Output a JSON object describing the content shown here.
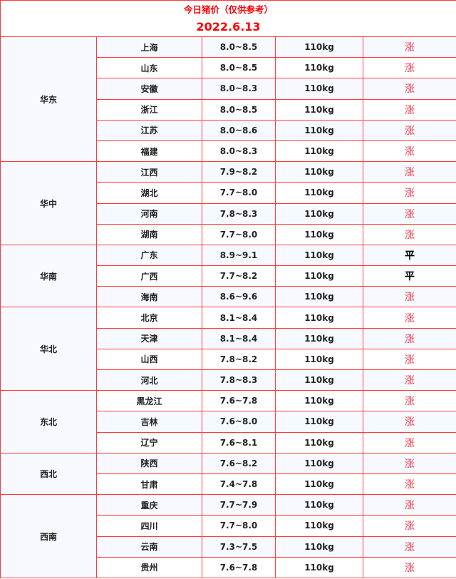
{
  "title": "今日猪价（仅供参考）",
  "date": "2022.6.13",
  "colors": {
    "border": "#ff3b3b",
    "up": "#f24052",
    "title": "#ff0000"
  },
  "regions": [
    {
      "name": "华东",
      "rows": [
        [
          "上海",
          "8.0~8.5",
          "110kg",
          "涨"
        ],
        [
          "山东",
          "8.0~8.5",
          "110kg",
          "涨"
        ],
        [
          "安徽",
          "8.0~8.3",
          "110kg",
          "涨"
        ],
        [
          "浙江",
          "8.0~8.5",
          "110kg",
          "涨"
        ],
        [
          "江苏",
          "8.0~8.6",
          "110kg",
          "涨"
        ],
        [
          "福建",
          "8.0~8.3",
          "110kg",
          "涨"
        ]
      ]
    },
    {
      "name": "华中",
      "rows": [
        [
          "江西",
          "7.9~8.2",
          "110kg",
          "涨"
        ],
        [
          "湖北",
          "7.7~8.0",
          "110kg",
          "涨"
        ],
        [
          "河南",
          "7.8~8.3",
          "110kg",
          "涨"
        ],
        [
          "湖南",
          "7.7~8.0",
          "110kg",
          "涨"
        ]
      ]
    },
    {
      "name": "华南",
      "rows": [
        [
          "广东",
          "8.9~9.1",
          "110kg",
          "平"
        ],
        [
          "广西",
          "7.7~8.2",
          "110kg",
          "平"
        ],
        [
          "海南",
          "8.6~9.6",
          "110kg",
          "涨"
        ]
      ]
    },
    {
      "name": "华北",
      "rows": [
        [
          "北京",
          "8.1~8.4",
          "110kg",
          "涨"
        ],
        [
          "天津",
          "8.1~8.4",
          "110kg",
          "涨"
        ],
        [
          "山西",
          "7.8~8.2",
          "110kg",
          "涨"
        ],
        [
          "河北",
          "7.8~8.3",
          "110kg",
          "涨"
        ]
      ]
    },
    {
      "name": "东北",
      "rows": [
        [
          "黑龙江",
          "7.6~7.8",
          "110kg",
          "涨"
        ],
        [
          "吉林",
          "7.6~8.0",
          "110kg",
          "涨"
        ],
        [
          "辽宁",
          "7.6~8.1",
          "110kg",
          "涨"
        ]
      ]
    },
    {
      "name": "西北",
      "rows": [
        [
          "陕西",
          "7.6~8.2",
          "110kg",
          "涨"
        ],
        [
          "甘肃",
          "7.4~7.8",
          "110kg",
          "涨"
        ]
      ]
    },
    {
      "name": "西南",
      "rows": [
        [
          "重庆",
          "7.7~7.9",
          "110kg",
          "涨"
        ],
        [
          "四川",
          "7.7~8.0",
          "110kg",
          "涨"
        ],
        [
          "云南",
          "7.3~7.5",
          "110kg",
          "涨"
        ],
        [
          "贵州",
          "7.6~7.8",
          "110kg",
          "涨"
        ]
      ]
    }
  ]
}
